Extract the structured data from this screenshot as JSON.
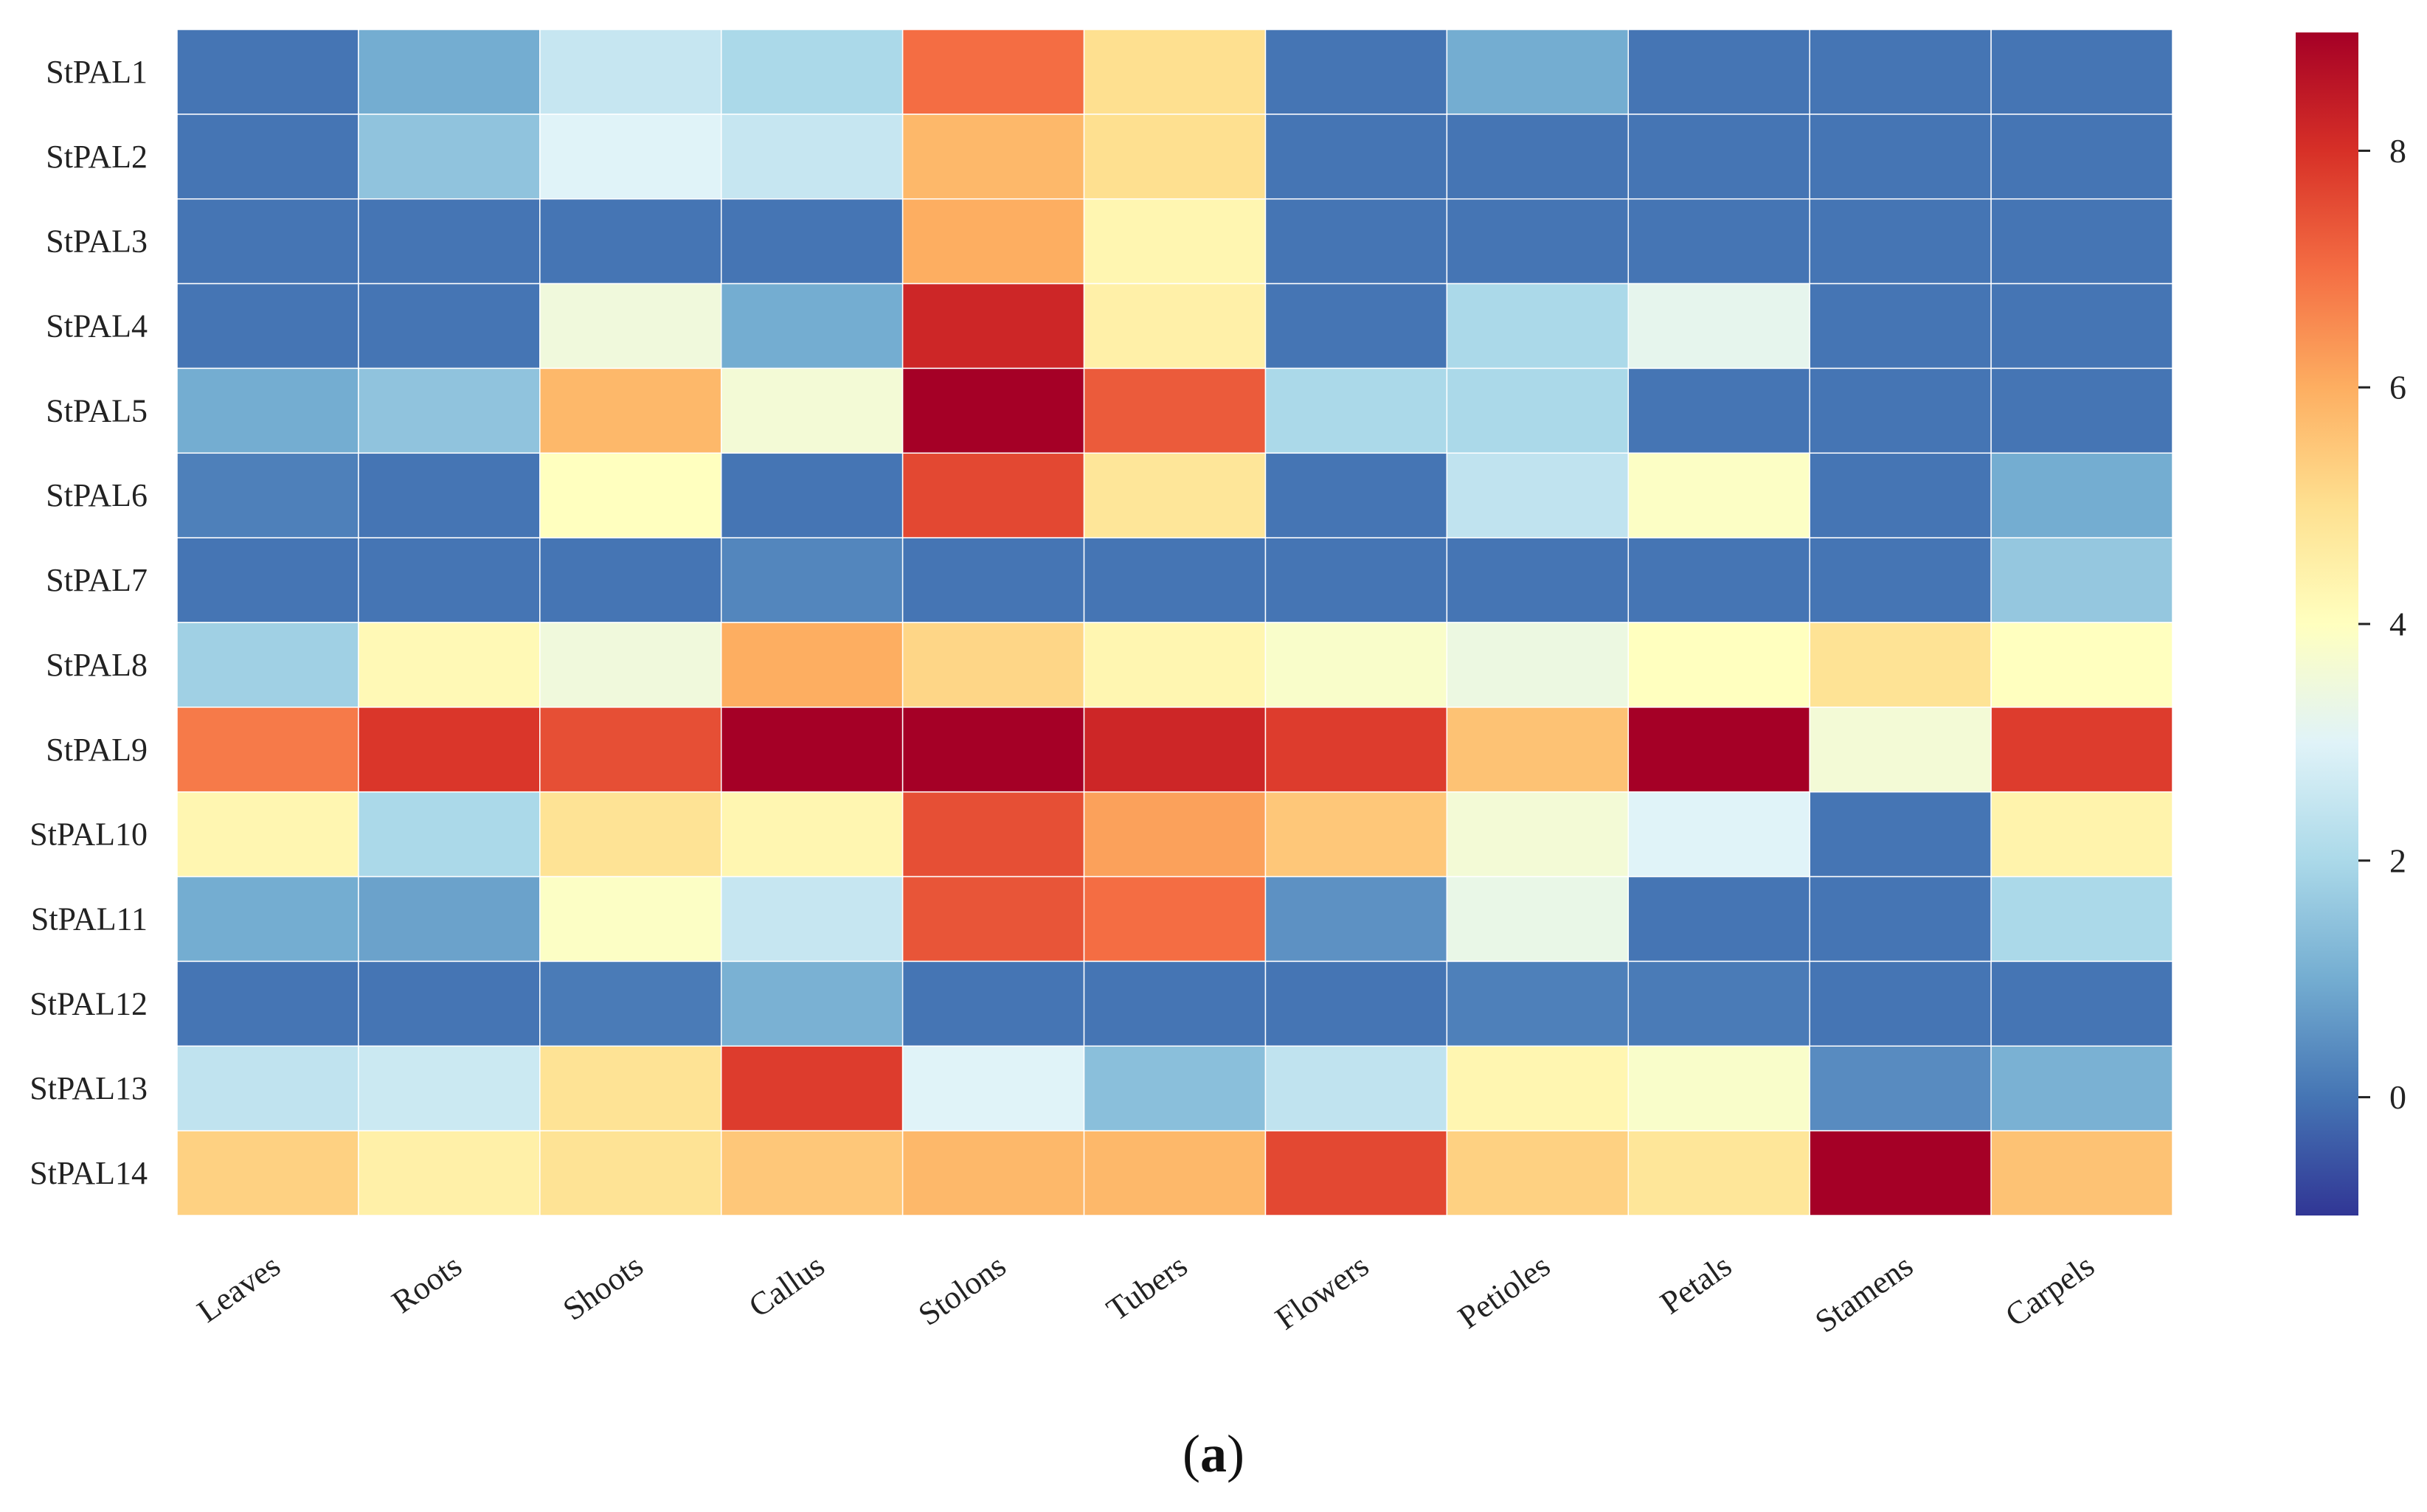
{
  "chart_data": {
    "type": "heatmap",
    "title": "",
    "rows": [
      "StPAL1",
      "StPAL2",
      "StPAL3",
      "StPAL4",
      "StPAL5",
      "StPAL6",
      "StPAL7",
      "StPAL8",
      "StPAL9",
      "StPAL10",
      "StPAL11",
      "StPAL12",
      "StPAL13",
      "StPAL14"
    ],
    "columns": [
      "Leaves",
      "Roots",
      "Shoots",
      "Callus",
      "Stolons",
      "Tubers",
      "Flowers",
      "Petioles",
      "Petals",
      "Stamens",
      "Carpels"
    ],
    "values": [
      [
        0.0,
        1.0,
        2.5,
        2.0,
        7.0,
        5.0,
        0.0,
        1.0,
        0.0,
        0.0,
        0.0
      ],
      [
        0.0,
        1.5,
        3.0,
        2.5,
        5.8,
        5.0,
        0.0,
        0.0,
        0.0,
        0.0,
        0.0
      ],
      [
        0.0,
        0.0,
        0.0,
        0.0,
        6.0,
        4.3,
        0.0,
        0.0,
        0.0,
        0.0,
        0.0
      ],
      [
        0.0,
        0.0,
        3.5,
        1.0,
        8.2,
        4.5,
        0.0,
        2.0,
        3.2,
        0.0,
        0.0
      ],
      [
        1.0,
        1.5,
        5.8,
        3.6,
        9.0,
        7.3,
        2.0,
        2.0,
        0.0,
        0.0,
        0.0
      ],
      [
        0.2,
        0.0,
        4.0,
        0.0,
        7.6,
        4.8,
        0.0,
        2.4,
        3.9,
        0.0,
        1.0
      ],
      [
        0.0,
        0.0,
        0.0,
        0.3,
        0.0,
        0.0,
        0.0,
        0.0,
        0.0,
        0.0,
        1.6
      ],
      [
        1.8,
        4.2,
        3.5,
        6.0,
        5.2,
        4.3,
        3.8,
        3.4,
        4.0,
        4.9,
        4.0
      ],
      [
        6.8,
        7.9,
        7.5,
        9.0,
        9.0,
        8.2,
        7.8,
        5.6,
        9.0,
        3.6,
        7.8
      ],
      [
        4.3,
        2.0,
        4.9,
        4.3,
        7.5,
        6.2,
        5.5,
        3.6,
        3.0,
        0.0,
        4.4
      ],
      [
        1.0,
        0.8,
        3.9,
        2.5,
        7.4,
        7.0,
        0.5,
        3.3,
        0.0,
        0.0,
        2.0
      ],
      [
        0.0,
        0.0,
        0.1,
        1.1,
        0.0,
        0.0,
        0.0,
        0.2,
        0.1,
        0.0,
        0.0
      ],
      [
        2.4,
        2.6,
        4.9,
        7.8,
        3.0,
        1.4,
        2.4,
        4.3,
        3.8,
        0.4,
        1.1
      ],
      [
        5.3,
        4.5,
        4.9,
        5.5,
        5.8,
        5.8,
        7.6,
        5.3,
        4.8,
        9.0,
        5.6
      ]
    ],
    "colorbar": {
      "min": -1.0,
      "max": 9.0,
      "ticks": [
        0,
        2,
        4,
        6,
        8
      ],
      "colormap": "RdYlBu_r",
      "colors": [
        "#313695",
        "#4575b4",
        "#74add1",
        "#abd9e9",
        "#e0f3f8",
        "#ffffbf",
        "#fee090",
        "#fdae61",
        "#f46d43",
        "#d73027",
        "#a50026"
      ]
    },
    "grid_line_color": "#ffffff"
  },
  "caption": {
    "open": "(",
    "label": "a",
    "close": ")"
  }
}
